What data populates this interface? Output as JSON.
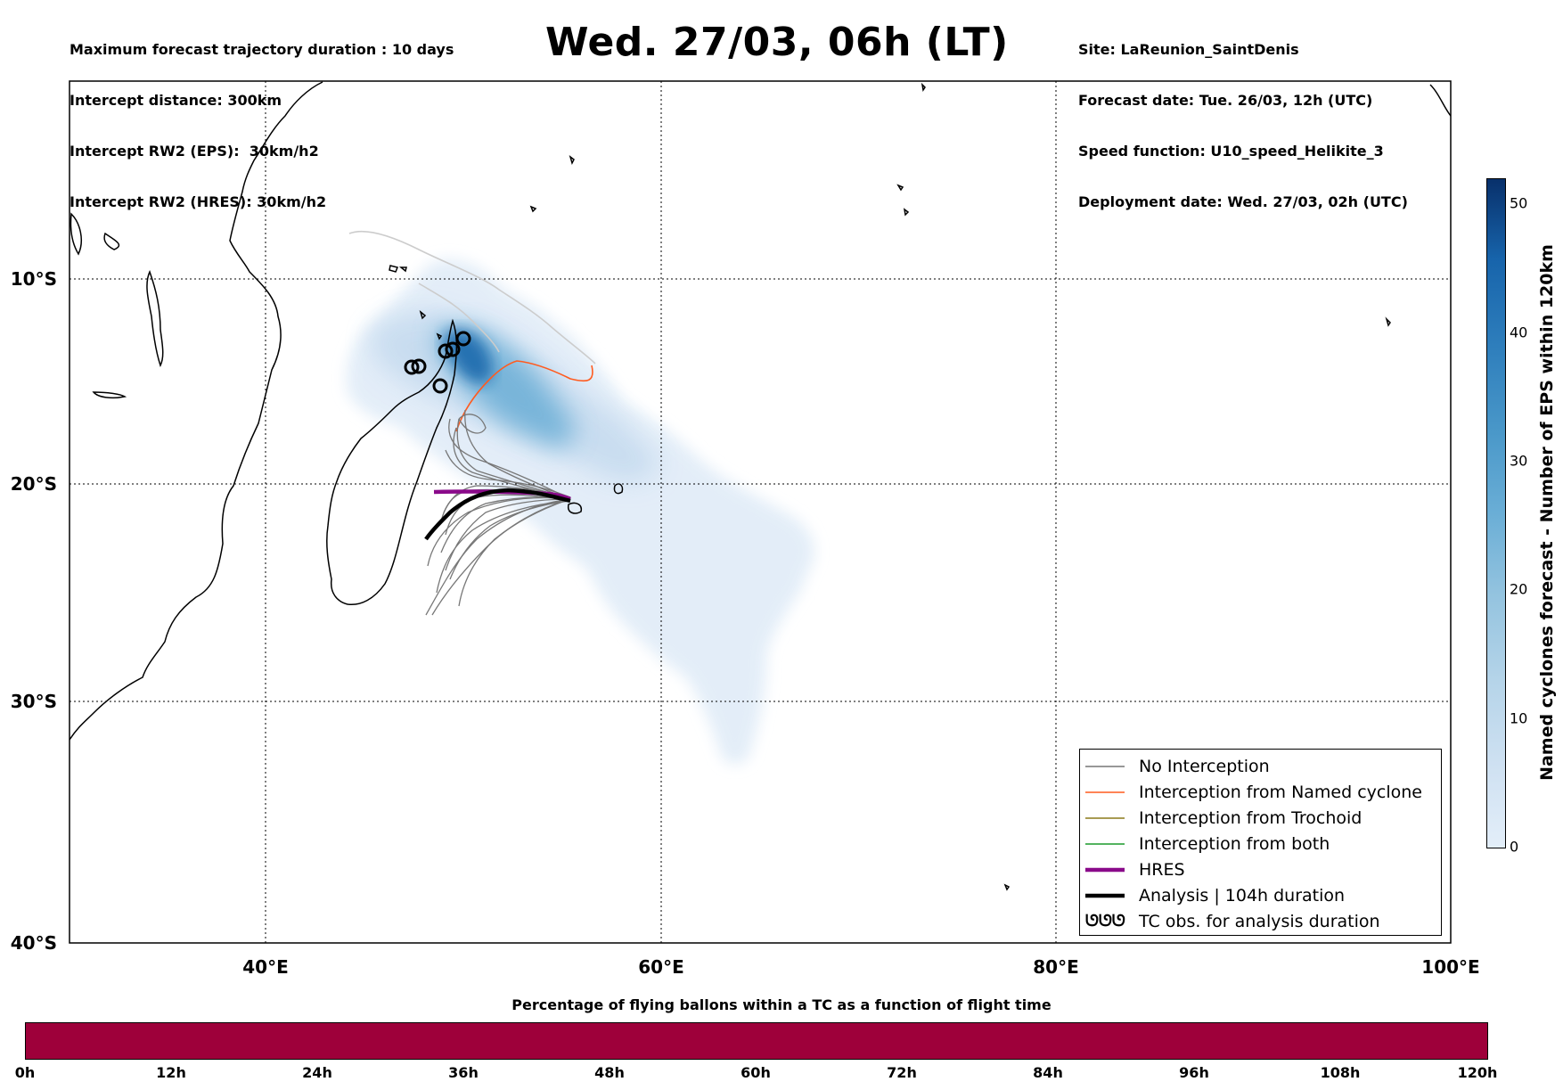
{
  "header": {
    "left_lines": [
      "Maximum forecast trajectory duration : 10 days",
      "Intercept distance: 300km",
      "Intercept RW2 (EPS):  30km/h2",
      "Intercept RW2 (HRES): 30km/h2"
    ],
    "title": "Wed. 27/03, 06h (LT)",
    "right_lines": [
      "Site: LaReunion_SaintDenis",
      "Forecast date: Tue. 26/03, 12h (UTC)",
      "Speed function: U10_speed_Helikite_3",
      "Deployment date: Wed. 27/03, 02h (UTC)"
    ]
  },
  "map": {
    "lat_labels": [
      "10°S",
      "20°S",
      "30°S",
      "40°S"
    ],
    "lon_labels": [
      "40°E",
      "60°E",
      "80°E",
      "100°E"
    ],
    "extent": {
      "lon_min": 30,
      "lon_max": 100,
      "lat_min": -40,
      "lat_max": 0
    },
    "colors": {
      "no_interception": "#777777",
      "named_cyclone": "#ff5b1f",
      "trochoid": "#8b7a1a",
      "both": "#1a9a2a",
      "hres": "#8a0a8a",
      "analysis": "#000000",
      "previous_track": "#cccccc"
    }
  },
  "legend": {
    "items": [
      {
        "label": "No Interception",
        "color": "#777777",
        "kind": "thin"
      },
      {
        "label": "Interception from Named cyclone",
        "color": "#ff5b1f",
        "kind": "thin"
      },
      {
        "label": "Interception from Trochoid",
        "color": "#8b7a1a",
        "kind": "thin"
      },
      {
        "label": "Interception from both",
        "color": "#1a9a2a",
        "kind": "thin"
      },
      {
        "label": "HRES",
        "color": "#8a0a8a",
        "kind": "thick"
      },
      {
        "label": "Analysis | 104h duration",
        "color": "#000000",
        "kind": "thick"
      },
      {
        "label": "TC obs. for analysis duration",
        "color": "#000000",
        "kind": "symbol",
        "symbol": "ᘎᘎᘎ"
      }
    ]
  },
  "colorbar_vertical": {
    "title": "Named cyclones forecast - Number of EPS within 120km",
    "ticks": [
      "0",
      "10",
      "20",
      "30",
      "40",
      "50"
    ],
    "range": [
      0,
      52
    ]
  },
  "colorbar_horizontal": {
    "title": "Percentage of flying ballons within a TC as a function of flight time",
    "ticks": [
      "0h",
      "12h",
      "24h",
      "36h",
      "48h",
      "60h",
      "72h",
      "84h",
      "96h",
      "108h",
      "120h"
    ],
    "color": "#9e003a"
  }
}
